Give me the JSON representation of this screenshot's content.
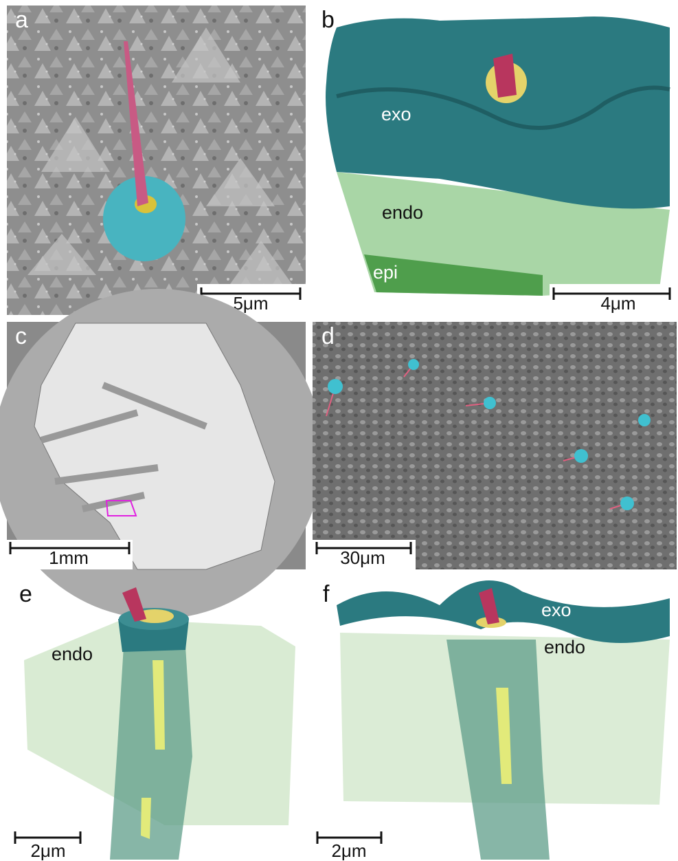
{
  "panels": [
    {
      "letter": "a",
      "scale_bar": "5μm"
    },
    {
      "letter": "b",
      "labels": [
        "exo",
        "endo",
        "epi"
      ],
      "scale_bar": "4μm"
    },
    {
      "letter": "c",
      "scale_bar": "1mm"
    },
    {
      "letter": "d",
      "scale_bar": "30μm"
    },
    {
      "letter": "e",
      "labels": [
        "endo"
      ],
      "scale_bar": "2μm"
    },
    {
      "letter": "f",
      "labels": [
        "exo",
        "endo"
      ],
      "scale_bar": "2μm"
    }
  ]
}
